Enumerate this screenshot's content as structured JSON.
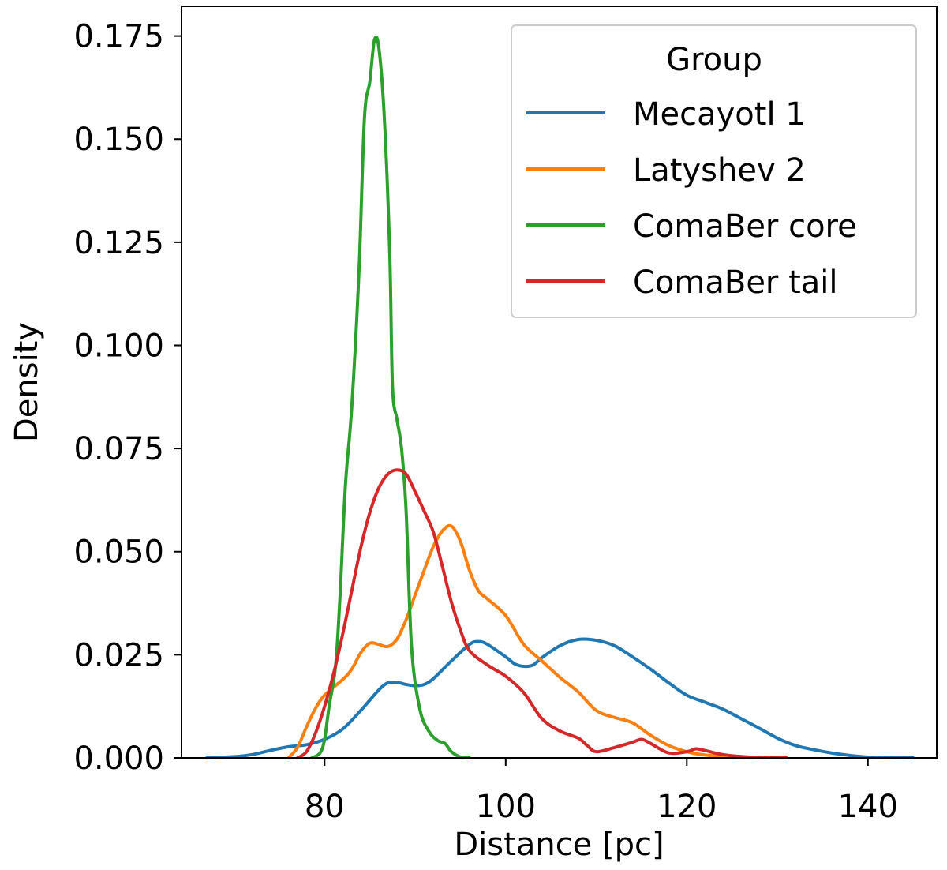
{
  "chart_data": {
    "type": "line",
    "title": "",
    "xlabel": "Distance [pc]",
    "ylabel": "Density",
    "xlim": [
      64.2,
      147.6
    ],
    "ylim": [
      0,
      0.1822
    ],
    "xticks": [
      {
        "value": 80,
        "label": "80"
      },
      {
        "value": 100,
        "label": "100"
      },
      {
        "value": 120,
        "label": "120"
      },
      {
        "value": 140,
        "label": "140"
      }
    ],
    "yticks": [
      {
        "value": 0,
        "label": "0.000"
      },
      {
        "value": 0.025,
        "label": "0.025"
      },
      {
        "value": 0.05,
        "label": "0.050"
      },
      {
        "value": 0.075,
        "label": "0.075"
      },
      {
        "value": 0.1,
        "label": "0.100"
      },
      {
        "value": 0.125,
        "label": "0.125"
      },
      {
        "value": 0.15,
        "label": "0.150"
      },
      {
        "value": 0.175,
        "label": "0.175"
      }
    ],
    "grid": false,
    "legend": {
      "title": "Group",
      "position": "top-right"
    },
    "series": [
      {
        "name": "Mecayotl 1",
        "color": "#1f77b4",
        "points": [
          [
            67,
            0
          ],
          [
            70,
            0.0003
          ],
          [
            72,
            0.0008
          ],
          [
            74,
            0.0018
          ],
          [
            76,
            0.0027
          ],
          [
            78,
            0.0032
          ],
          [
            80,
            0.0045
          ],
          [
            82,
            0.007
          ],
          [
            84,
            0.0115
          ],
          [
            86,
            0.0165
          ],
          [
            87,
            0.0182
          ],
          [
            88,
            0.0183
          ],
          [
            89,
            0.0178
          ],
          [
            90,
            0.0175
          ],
          [
            91,
            0.0178
          ],
          [
            92,
            0.0192
          ],
          [
            94,
            0.0235
          ],
          [
            96,
            0.0275
          ],
          [
            97,
            0.0282
          ],
          [
            98,
            0.0275
          ],
          [
            100,
            0.0245
          ],
          [
            101,
            0.0228
          ],
          [
            102,
            0.0222
          ],
          [
            103,
            0.0225
          ],
          [
            104,
            0.0243
          ],
          [
            106,
            0.0272
          ],
          [
            108,
            0.0287
          ],
          [
            110,
            0.0285
          ],
          [
            112,
            0.0272
          ],
          [
            114,
            0.0245
          ],
          [
            116,
            0.0215
          ],
          [
            118,
            0.0182
          ],
          [
            120,
            0.0152
          ],
          [
            122,
            0.0135
          ],
          [
            124,
            0.0118
          ],
          [
            126,
            0.0095
          ],
          [
            128,
            0.0072
          ],
          [
            130,
            0.0048
          ],
          [
            132,
            0.003
          ],
          [
            134,
            0.002
          ],
          [
            136,
            0.0012
          ],
          [
            138,
            0.0006
          ],
          [
            140,
            0.0002
          ],
          [
            142,
            0.0001
          ],
          [
            145,
            0
          ]
        ]
      },
      {
        "name": "Latyshev 2",
        "color": "#ff7f0e",
        "points": [
          [
            76,
            0
          ],
          [
            77,
            0.0025
          ],
          [
            78,
            0.0075
          ],
          [
            79,
            0.012
          ],
          [
            80,
            0.0152
          ],
          [
            82,
            0.019
          ],
          [
            83,
            0.0215
          ],
          [
            84,
            0.0255
          ],
          [
            85,
            0.0278
          ],
          [
            86,
            0.0275
          ],
          [
            87,
            0.027
          ],
          [
            88,
            0.0288
          ],
          [
            89,
            0.0335
          ],
          [
            90,
            0.0395
          ],
          [
            91,
            0.0455
          ],
          [
            92,
            0.0512
          ],
          [
            93,
            0.055
          ],
          [
            94,
            0.0562
          ],
          [
            95,
            0.0525
          ],
          [
            96,
            0.0455
          ],
          [
            97,
            0.0405
          ],
          [
            98,
            0.0385
          ],
          [
            100,
            0.0345
          ],
          [
            102,
            0.0275
          ],
          [
            104,
            0.0235
          ],
          [
            106,
            0.0195
          ],
          [
            108,
            0.016
          ],
          [
            110,
            0.0115
          ],
          [
            112,
            0.0098
          ],
          [
            114,
            0.0085
          ],
          [
            116,
            0.0055
          ],
          [
            118,
            0.003
          ],
          [
            120,
            0.0015
          ],
          [
            122,
            0.0007
          ],
          [
            125,
            0.0002
          ],
          [
            127,
            0
          ]
        ]
      },
      {
        "name": "ComaBer core",
        "color": "#2ca02c",
        "points": [
          [
            78.6,
            0
          ],
          [
            79.5,
            0.0012
          ],
          [
            80,
            0.0045
          ],
          [
            80.5,
            0.0125
          ],
          [
            81.2,
            0.022
          ],
          [
            81.7,
            0.039
          ],
          [
            82.3,
            0.066
          ],
          [
            83,
            0.085
          ],
          [
            83.8,
            0.118
          ],
          [
            84.4,
            0.155
          ],
          [
            85,
            0.164
          ],
          [
            85.5,
            0.174
          ],
          [
            86,
            0.172
          ],
          [
            86.6,
            0.155
          ],
          [
            87.2,
            0.122
          ],
          [
            87.5,
            0.09
          ],
          [
            88,
            0.082
          ],
          [
            88.5,
            0.075
          ],
          [
            89,
            0.06
          ],
          [
            89.6,
            0.027
          ],
          [
            90.5,
            0.012
          ],
          [
            91.5,
            0.0065
          ],
          [
            92.5,
            0.0042
          ],
          [
            93.3,
            0.0035
          ],
          [
            94,
            0.0015
          ],
          [
            95,
            0.0002
          ],
          [
            96,
            0
          ]
        ]
      },
      {
        "name": "ComaBer tail",
        "color": "#d62728",
        "points": [
          [
            77,
            0
          ],
          [
            78,
            0.0015
          ],
          [
            79,
            0.006
          ],
          [
            80,
            0.0125
          ],
          [
            81,
            0.0205
          ],
          [
            82,
            0.03
          ],
          [
            83,
            0.0405
          ],
          [
            84,
            0.051
          ],
          [
            85,
            0.0595
          ],
          [
            86,
            0.0655
          ],
          [
            87,
            0.0688
          ],
          [
            88,
            0.0698
          ],
          [
            89,
            0.0688
          ],
          [
            90,
            0.0645
          ],
          [
            91,
            0.0598
          ],
          [
            92,
            0.0548
          ],
          [
            93,
            0.0465
          ],
          [
            94,
            0.0378
          ],
          [
            95,
            0.031
          ],
          [
            96,
            0.026
          ],
          [
            98,
            0.0225
          ],
          [
            100,
            0.0198
          ],
          [
            102,
            0.0158
          ],
          [
            104,
            0.0095
          ],
          [
            106,
            0.0065
          ],
          [
            108,
            0.0048
          ],
          [
            109,
            0.003
          ],
          [
            110,
            0.0015
          ],
          [
            112,
            0.0025
          ],
          [
            114,
            0.0038
          ],
          [
            115,
            0.0045
          ],
          [
            116,
            0.0035
          ],
          [
            118,
            0.0012
          ],
          [
            120,
            0.0015
          ],
          [
            121,
            0.0022
          ],
          [
            122,
            0.0018
          ],
          [
            124,
            0.0008
          ],
          [
            127,
            0.0002
          ],
          [
            131,
            0
          ]
        ]
      }
    ]
  }
}
